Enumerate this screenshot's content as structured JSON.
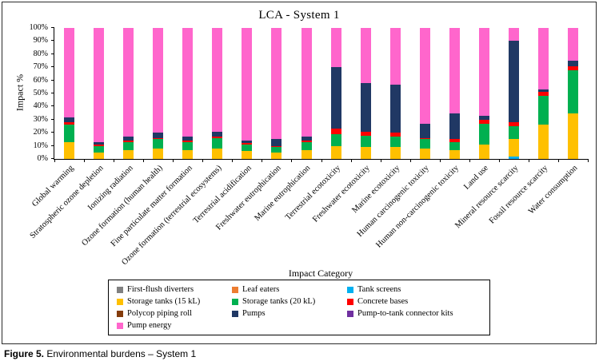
{
  "caption": {
    "label": "Figure 5.",
    "text": "Environmental burdens – System 1"
  },
  "chart_data": {
    "type": "bar",
    "stacked": true,
    "normalized": "percent",
    "title": "LCA -  System 1",
    "xlabel": "Impact Category",
    "ylabel": "Impact %",
    "ylim": [
      0,
      100
    ],
    "grid": false,
    "legend_position": "bottom",
    "y_ticks": [
      "0%",
      "10%",
      "20%",
      "30%",
      "40%",
      "50%",
      "60%",
      "70%",
      "80%",
      "90%",
      "100%"
    ],
    "categories": [
      "Global warming",
      "Stratospheric ozone depletion",
      "Ionizing radiation",
      "Ozone formation (human health)",
      "Fine particulate matter formation",
      "Ozone formation (terrestrial ecosystems)",
      "Terrestrial acidification",
      "Freshwater eutrophication",
      "Marine eutrophication",
      "Terrestrial ecotoxicity",
      "Freshwater ecotoxicity",
      "Marine ecotoxicity",
      "Human carcinogenic toxicity",
      "Human non-carcinogenic toxicity",
      "Land use",
      "Mineral resource scarcity",
      "Fossil resource scarcity",
      "Water consumption"
    ],
    "series": [
      {
        "name": "First-flush diverters",
        "color": "#808080",
        "values": [
          0,
          0,
          0,
          0,
          0,
          0,
          0,
          0,
          0,
          0,
          0,
          0,
          0,
          0,
          0,
          0,
          0,
          0
        ]
      },
      {
        "name": "Leaf eaters",
        "color": "#ED7D31",
        "values": [
          0,
          0,
          0,
          0,
          0,
          0,
          0,
          0,
          0,
          0,
          0,
          0,
          0,
          0,
          0,
          0,
          0,
          0
        ]
      },
      {
        "name": "Tank screens",
        "color": "#00B0F0",
        "values": [
          0,
          0,
          0,
          0,
          0,
          0,
          0,
          0,
          0,
          0,
          0,
          0,
          0,
          0,
          0,
          2,
          0,
          0
        ]
      },
      {
        "name": "Storage tanks (15 kL)",
        "color": "#FFC000",
        "values": [
          13,
          5,
          7,
          8,
          7,
          8,
          6,
          5,
          7,
          10,
          9,
          9,
          8,
          7,
          11,
          13,
          26,
          35
        ]
      },
      {
        "name": "Storage tanks (20 kL)",
        "color": "#00B050",
        "values": [
          13,
          5,
          6,
          7,
          6,
          8,
          5,
          4,
          6,
          9,
          9,
          8,
          7,
          6,
          16,
          10,
          22,
          33
        ]
      },
      {
        "name": "Concrete bases",
        "color": "#FF0000",
        "values": [
          2,
          1,
          1,
          1,
          1,
          1,
          1,
          1,
          1,
          4,
          3,
          3,
          1,
          2,
          3,
          3,
          3,
          3
        ]
      },
      {
        "name": "Polycop piping roll",
        "color": "#843C0C",
        "values": [
          0,
          0,
          0,
          0,
          0,
          0,
          0,
          0,
          0,
          0,
          0,
          0,
          0,
          0,
          0,
          0,
          0,
          0
        ]
      },
      {
        "name": "Pumps",
        "color": "#203864",
        "values": [
          4,
          2,
          3,
          4,
          3,
          4,
          2,
          5,
          3,
          47,
          37,
          37,
          11,
          20,
          3,
          62,
          2,
          4
        ]
      },
      {
        "name": "Pump-to-tank connector kits",
        "color": "#7030A0",
        "values": [
          0,
          0,
          0,
          0,
          0,
          0,
          0,
          0,
          0,
          0,
          0,
          0,
          0,
          0,
          0,
          0,
          0,
          0
        ]
      },
      {
        "name": "Pump energy",
        "color": "#FF66CC",
        "values": [
          68,
          87,
          83,
          80,
          83,
          79,
          86,
          85,
          83,
          30,
          42,
          43,
          73,
          65,
          67,
          10,
          47,
          25
        ]
      }
    ]
  }
}
